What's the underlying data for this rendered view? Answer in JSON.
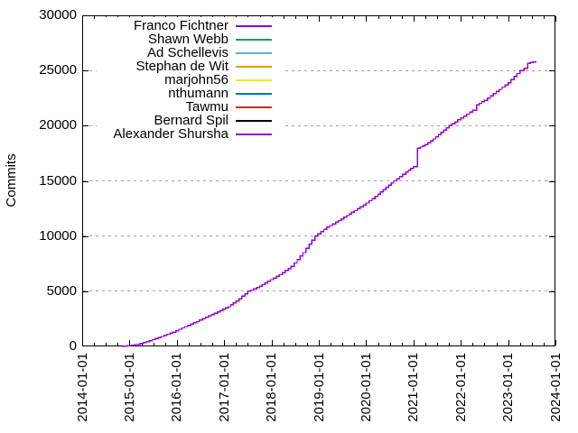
{
  "chart_data": {
    "type": "line",
    "title": "",
    "xlabel": "",
    "ylabel": "Commits",
    "x_axis": {
      "tick_labels": [
        "2014-01-01",
        "2015-01-01",
        "2016-01-01",
        "2017-01-01",
        "2018-01-01",
        "2019-01-01",
        "2020-01-01",
        "2021-01-01",
        "2022-01-01",
        "2023-01-01",
        "2024-01-01"
      ],
      "range_years": [
        2014,
        2024
      ],
      "minor_ticks_per_interval": 3
    },
    "y_axis": {
      "tick_labels": [
        "0",
        "5000",
        "10000",
        "15000",
        "20000",
        "25000",
        "30000"
      ],
      "tick_values": [
        0,
        5000,
        10000,
        15000,
        20000,
        25000,
        30000
      ],
      "range": [
        0,
        30000
      ]
    },
    "grid": {
      "horizontal": true,
      "vertical": false,
      "style": "dashed",
      "color": "#a0a0a0"
    },
    "legend": {
      "position": "top-left-inside",
      "opaque": true
    },
    "series": [
      {
        "name": "Franco Fichtner",
        "color": "#9400d3",
        "points": [
          [
            "2014-11",
            0
          ],
          [
            "2015-01",
            80
          ],
          [
            "2015-03",
            200
          ],
          [
            "2015-06",
            520
          ],
          [
            "2015-09",
            900
          ],
          [
            "2015-12",
            1300
          ],
          [
            "2016-03",
            1800
          ],
          [
            "2016-06",
            2250
          ],
          [
            "2016-09",
            2750
          ],
          [
            "2016-12",
            3250
          ],
          [
            "2017-02",
            3600
          ],
          [
            "2017-04",
            4100
          ],
          [
            "2017-07",
            5000
          ],
          [
            "2017-10",
            5450
          ],
          [
            "2017-12",
            5900
          ],
          [
            "2018-03",
            6500
          ],
          [
            "2018-06",
            7250
          ],
          [
            "2018-09",
            8500
          ],
          [
            "2018-12",
            10000
          ],
          [
            "2019-03",
            10800
          ],
          [
            "2019-06",
            11400
          ],
          [
            "2019-10",
            12300
          ],
          [
            "2020-01",
            13000
          ],
          [
            "2020-04",
            13800
          ],
          [
            "2020-08",
            15000
          ],
          [
            "2020-11",
            15800
          ],
          [
            "2021-01",
            16300
          ],
          [
            "2021-02",
            16600
          ],
          [
            "2021-02",
            17950
          ],
          [
            "2021-04",
            18300
          ],
          [
            "2021-06",
            18800
          ],
          [
            "2021-08",
            19400
          ],
          [
            "2021-10",
            20000
          ],
          [
            "2022-01",
            20700
          ],
          [
            "2022-04",
            21400
          ],
          [
            "2022-05",
            21500
          ],
          [
            "2022-05",
            21900
          ],
          [
            "2022-07",
            22300
          ],
          [
            "2022-10",
            23100
          ],
          [
            "2023-01",
            23900
          ],
          [
            "2023-04",
            25000
          ],
          [
            "2023-05",
            25200
          ],
          [
            "2023-06",
            25650
          ],
          [
            "2023-08",
            25850
          ]
        ]
      },
      {
        "name": "Shawn Webb",
        "color": "#009e73",
        "points": []
      },
      {
        "name": "Ad Schellevis",
        "color": "#56b4e9",
        "points": []
      },
      {
        "name": "Stephan de Wit",
        "color": "#e69f00",
        "points": []
      },
      {
        "name": "marjohn56",
        "color": "#f0e442",
        "points": []
      },
      {
        "name": "nthumann",
        "color": "#0072b2",
        "points": []
      },
      {
        "name": "Tawmu",
        "color": "#e51e10",
        "points": []
      },
      {
        "name": "Bernard Spil",
        "color": "#000000",
        "points": []
      },
      {
        "name": "Alexander Shursha",
        "color": "#9400d3",
        "points": []
      }
    ],
    "note": "Only the Franco Fichtner curve is visibly above zero at this scale; all other series are indistinguishable from the x-axis baseline."
  }
}
